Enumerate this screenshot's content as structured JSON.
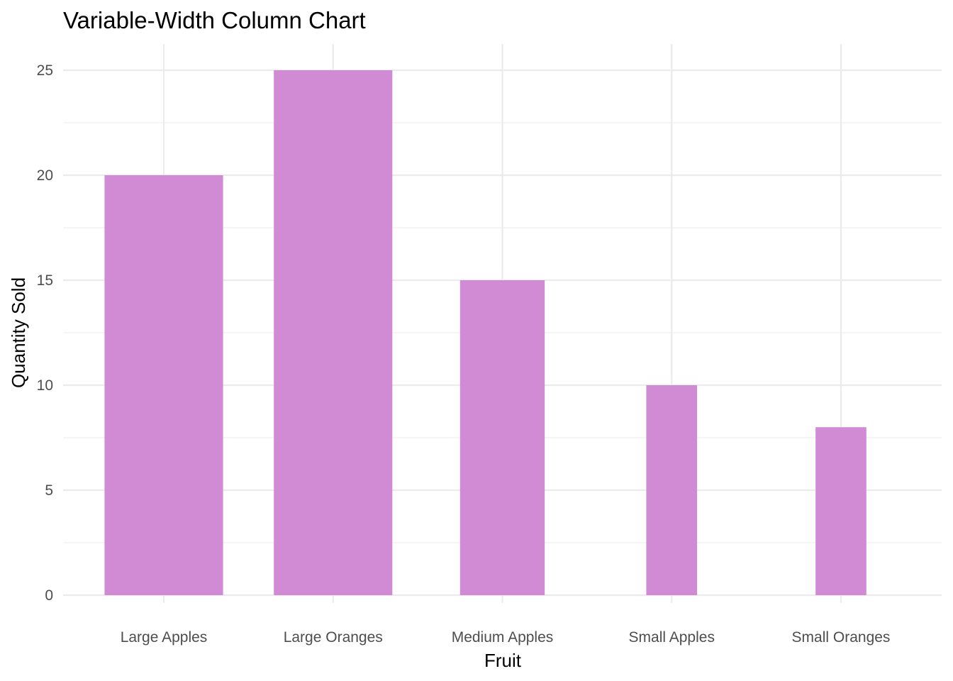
{
  "chart_data": {
    "type": "bar",
    "title": "Variable-Width Column Chart",
    "xlabel": "Fruit",
    "ylabel": "Quantity Sold",
    "categories": [
      "Large Apples",
      "Large Oranges",
      "Medium Apples",
      "Small Apples",
      "Small Oranges"
    ],
    "values": [
      20,
      25,
      15,
      10,
      8
    ],
    "bar_widths": [
      0.7,
      0.7,
      0.5,
      0.3,
      0.3
    ],
    "ylim": [
      0,
      25
    ],
    "y_ticks": [
      0,
      5,
      10,
      15,
      20,
      25
    ],
    "y_tick_labels": [
      "0",
      "5",
      "10",
      "15",
      "20",
      "25"
    ],
    "grid": true,
    "legend": "none",
    "bar_color": "#D18BD4"
  }
}
